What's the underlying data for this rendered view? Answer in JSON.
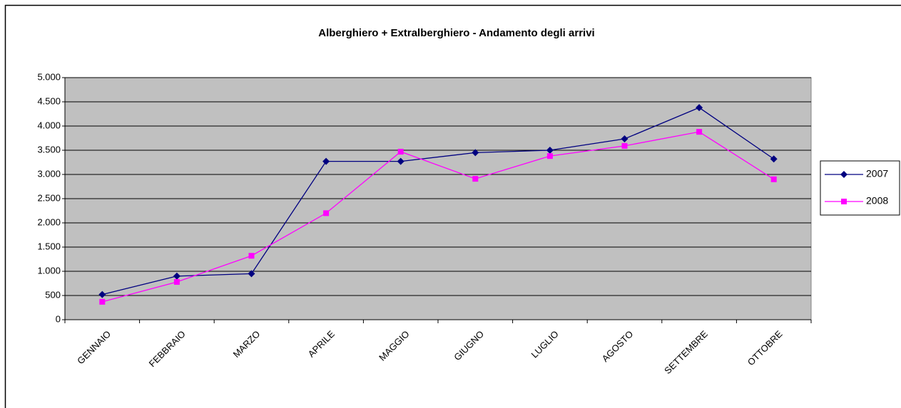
{
  "chart_data": {
    "type": "line",
    "title": "Alberghiero + Extralberghiero - Andamento degli arrivi",
    "categories": [
      "GENNAIO",
      "FEBBRAIO",
      "MARZO",
      "APRILE",
      "MAGGIO",
      "GIUGNO",
      "LUGLIO",
      "AGOSTO",
      "SETTEMBRE",
      "OTTOBRE"
    ],
    "series": [
      {
        "name": "2007",
        "color": "#000080",
        "marker": "diamond",
        "values": [
          520,
          900,
          950,
          3270,
          3270,
          3450,
          3500,
          3735,
          4380,
          3320
        ]
      },
      {
        "name": "2008",
        "color": "#ff00ff",
        "marker": "square",
        "values": [
          370,
          780,
          1320,
          2200,
          3470,
          2910,
          3380,
          3590,
          3880,
          2900
        ]
      }
    ],
    "ylim": [
      0,
      5000
    ],
    "yticks": [
      0,
      500,
      {
        "value": 1000,
        "label": "1.000"
      },
      {
        "value": 1500,
        "label": "1.500"
      },
      {
        "value": 2000,
        "label": "2.000"
      },
      {
        "value": 2500,
        "label": "2.500"
      },
      {
        "value": 3000,
        "label": "3.000"
      },
      {
        "value": 3500,
        "label": "3.500"
      },
      {
        "value": 4000,
        "label": "4.000"
      },
      {
        "value": 4500,
        "label": "4.500"
      },
      {
        "value": 5000,
        "label": "5.000"
      }
    ],
    "grid": true,
    "legend": "right",
    "plot_background": "#c0c0c0"
  }
}
